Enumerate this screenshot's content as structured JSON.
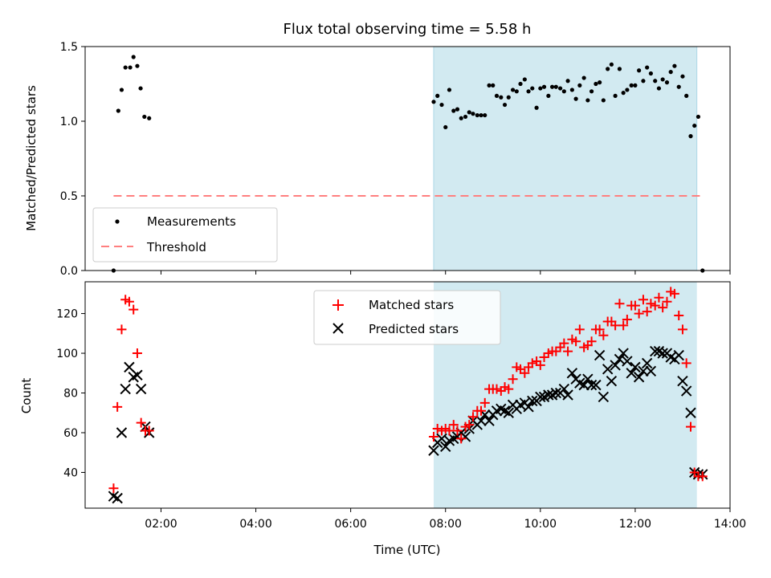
{
  "colors": {
    "shade": "#add8e6",
    "threshold": "#ff7f7f",
    "matched": "#ff0000",
    "predicted": "#000000",
    "measurement": "#000000"
  },
  "chart_data": [
    {
      "type": "scatter",
      "title": "Flux total observing time = 5.58 h",
      "xlabel": "",
      "ylabel": "Matched/Predicted stars",
      "ylim": [
        0,
        1.5
      ],
      "yticks": [
        "0.0",
        "0.5",
        "1.0",
        "1.5"
      ],
      "xlim": [
        0.4,
        14.0
      ],
      "xticks": [
        "02:00",
        "04:00",
        "06:00",
        "08:00",
        "10:00",
        "12:00",
        "14:00"
      ],
      "xticks_hours": [
        2,
        4,
        6,
        8,
        10,
        12,
        14
      ],
      "shaded_span": [
        7.75,
        13.3
      ],
      "legend": {
        "placement": "lower-left",
        "entries": [
          "Measurements",
          "Threshold"
        ]
      },
      "threshold": {
        "name": "Threshold",
        "y": 0.5,
        "x": [
          1.0,
          13.4
        ]
      },
      "series": [
        {
          "name": "Measurements",
          "x": [
            1.0,
            1.1,
            1.17,
            1.25,
            1.35,
            1.42,
            1.5,
            1.57,
            1.65,
            1.75,
            7.75,
            7.83,
            7.92,
            8.0,
            8.08,
            8.17,
            8.25,
            8.33,
            8.42,
            8.5,
            8.58,
            8.67,
            8.75,
            8.83,
            8.92,
            9.0,
            9.08,
            9.17,
            9.25,
            9.33,
            9.42,
            9.5,
            9.58,
            9.67,
            9.75,
            9.83,
            9.92,
            10.0,
            10.08,
            10.17,
            10.25,
            10.33,
            10.42,
            10.5,
            10.58,
            10.67,
            10.75,
            10.83,
            10.92,
            11.0,
            11.08,
            11.17,
            11.25,
            11.33,
            11.42,
            11.5,
            11.58,
            11.67,
            11.75,
            11.83,
            11.92,
            12.0,
            12.08,
            12.17,
            12.25,
            12.33,
            12.42,
            12.5,
            12.58,
            12.67,
            12.75,
            12.83,
            12.92,
            13.0,
            13.08,
            13.17,
            13.25,
            13.33,
            13.42
          ],
          "y": [
            0.0,
            1.07,
            1.21,
            1.36,
            1.36,
            1.43,
            1.37,
            1.22,
            1.03,
            1.02,
            1.13,
            1.17,
            1.11,
            0.96,
            1.21,
            1.07,
            1.08,
            1.02,
            1.03,
            1.06,
            1.05,
            1.04,
            1.04,
            1.04,
            1.24,
            1.24,
            1.17,
            1.16,
            1.11,
            1.16,
            1.21,
            1.2,
            1.25,
            1.28,
            1.2,
            1.22,
            1.09,
            1.22,
            1.23,
            1.17,
            1.23,
            1.23,
            1.22,
            1.2,
            1.27,
            1.21,
            1.15,
            1.24,
            1.29,
            1.14,
            1.2,
            1.25,
            1.26,
            1.14,
            1.35,
            1.38,
            1.17,
            1.35,
            1.19,
            1.21,
            1.24,
            1.24,
            1.34,
            1.27,
            1.36,
            1.32,
            1.27,
            1.22,
            1.28,
            1.26,
            1.33,
            1.37,
            1.23,
            1.3,
            1.17,
            0.9,
            0.97,
            1.03,
            0.0
          ]
        }
      ]
    },
    {
      "type": "scatter",
      "title": "",
      "xlabel": "Time (UTC)",
      "ylabel": "Count",
      "ylim": [
        22,
        136
      ],
      "yticks": [
        "40",
        "60",
        "80",
        "100",
        "120"
      ],
      "yticks_values": [
        40,
        60,
        80,
        100,
        120
      ],
      "xlim": [
        0.4,
        14.0
      ],
      "xticks": [
        "02:00",
        "04:00",
        "06:00",
        "08:00",
        "10:00",
        "12:00",
        "14:00"
      ],
      "xticks_hours": [
        2,
        4,
        6,
        8,
        10,
        12,
        14
      ],
      "shaded_span": [
        7.75,
        13.3
      ],
      "legend": {
        "placement": "upper-center",
        "entries": [
          "Matched stars",
          "Predicted stars"
        ]
      },
      "series": [
        {
          "name": "Matched stars",
          "marker": "plus",
          "x": [
            1.0,
            1.08,
            1.17,
            1.25,
            1.33,
            1.42,
            1.5,
            1.58,
            1.67,
            1.75,
            7.75,
            7.83,
            7.92,
            8.0,
            8.08,
            8.17,
            8.25,
            8.33,
            8.42,
            8.5,
            8.58,
            8.67,
            8.75,
            8.83,
            8.92,
            9.0,
            9.08,
            9.17,
            9.25,
            9.33,
            9.42,
            9.5,
            9.58,
            9.67,
            9.75,
            9.83,
            9.92,
            10.0,
            10.08,
            10.17,
            10.25,
            10.33,
            10.42,
            10.5,
            10.58,
            10.67,
            10.75,
            10.83,
            10.92,
            11.0,
            11.08,
            11.17,
            11.25,
            11.33,
            11.42,
            11.5,
            11.58,
            11.67,
            11.75,
            11.83,
            11.92,
            12.0,
            12.08,
            12.17,
            12.25,
            12.33,
            12.42,
            12.5,
            12.58,
            12.67,
            12.75,
            12.83,
            12.92,
            13.0,
            13.08,
            13.17,
            13.25,
            13.33,
            13.42
          ],
          "y": [
            32,
            73,
            112,
            127,
            126,
            122,
            100,
            65,
            61,
            61,
            58,
            62,
            61,
            62,
            61,
            64,
            61,
            57,
            63,
            64,
            68,
            71,
            71,
            75,
            82,
            82,
            82,
            81,
            83,
            82,
            87,
            93,
            92,
            90,
            93,
            95,
            96,
            94,
            98,
            100,
            101,
            101,
            103,
            105,
            101,
            107,
            106,
            112,
            103,
            104,
            106,
            112,
            112,
            109,
            116,
            116,
            114,
            125,
            114,
            117,
            124,
            124,
            120,
            127,
            121,
            125,
            124,
            128,
            123,
            126,
            131,
            130,
            119,
            112,
            95,
            63,
            40,
            38,
            38
          ]
        },
        {
          "name": "Predicted stars",
          "marker": "x",
          "x": [
            1.0,
            1.08,
            1.17,
            1.25,
            1.33,
            1.42,
            1.5,
            1.58,
            1.67,
            1.75,
            7.75,
            7.83,
            7.92,
            8.0,
            8.08,
            8.17,
            8.25,
            8.33,
            8.42,
            8.5,
            8.58,
            8.67,
            8.75,
            8.83,
            8.92,
            9.0,
            9.08,
            9.17,
            9.25,
            9.33,
            9.42,
            9.5,
            9.58,
            9.67,
            9.75,
            9.83,
            9.92,
            10.0,
            10.08,
            10.17,
            10.25,
            10.33,
            10.42,
            10.5,
            10.58,
            10.67,
            10.75,
            10.83,
            10.92,
            11.0,
            11.08,
            11.17,
            11.25,
            11.33,
            11.42,
            11.5,
            11.58,
            11.67,
            11.75,
            11.83,
            11.92,
            12.0,
            12.08,
            12.17,
            12.25,
            12.33,
            12.42,
            12.5,
            12.58,
            12.67,
            12.75,
            12.83,
            12.92,
            13.0,
            13.08,
            13.17,
            13.25,
            13.33,
            13.42
          ],
          "y": [
            28,
            27,
            60,
            82,
            93,
            88,
            89,
            82,
            63,
            60,
            51,
            55,
            57,
            53,
            56,
            57,
            58,
            60,
            58,
            62,
            66,
            64,
            66,
            69,
            66,
            69,
            71,
            72,
            71,
            70,
            74,
            72,
            74,
            75,
            73,
            76,
            76,
            78,
            78,
            79,
            79,
            80,
            80,
            82,
            79,
            90,
            87,
            85,
            84,
            87,
            84,
            84,
            99,
            78,
            92,
            86,
            94,
            97,
            100,
            96,
            90,
            93,
            88,
            91,
            95,
            91,
            101,
            101,
            100,
            100,
            98,
            97,
            99,
            86,
            81,
            70,
            40,
            39,
            39
          ]
        }
      ]
    }
  ]
}
